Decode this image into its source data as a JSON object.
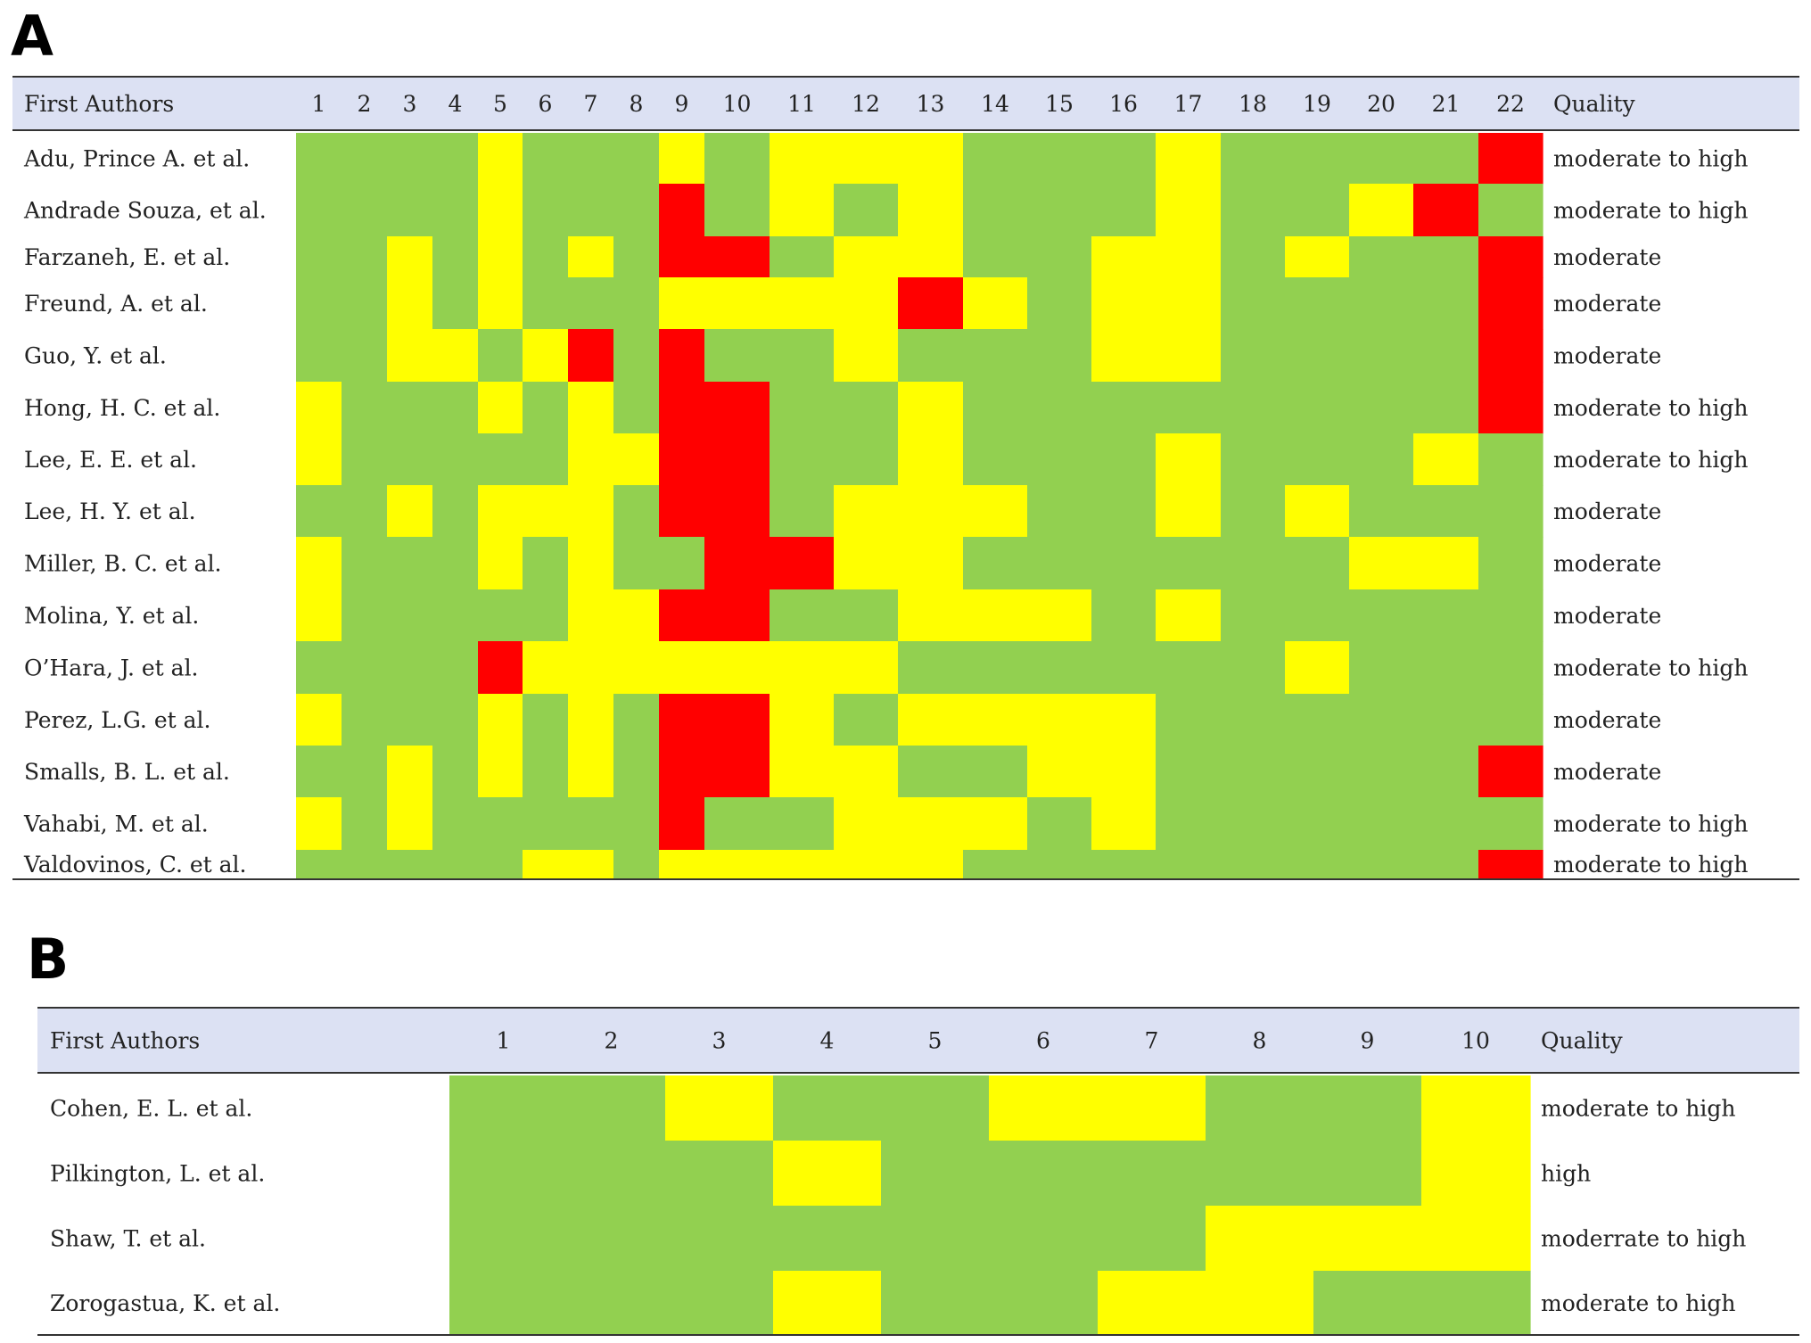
{
  "colors": {
    "green": "#92d050",
    "yellow": "#ffff00",
    "red": "#ff0000",
    "header_bg": "#dce1f3",
    "rule": "#333333"
  },
  "chart_data": [
    {
      "type": "heatmap",
      "panel": "A",
      "row_header": "First Authors",
      "quality_header": "Quality",
      "columns": [
        "1",
        "2",
        "3",
        "4",
        "5",
        "6",
        "7",
        "8",
        "9",
        "10",
        "11",
        "12",
        "13",
        "14",
        "15",
        "16",
        "17",
        "18",
        "19",
        "20",
        "21",
        "22"
      ],
      "legend": {
        "G": "green",
        "Y": "yellow",
        "R": "red"
      },
      "rows": [
        {
          "author": "Adu, Prince A. et al.",
          "quality": "moderate to high",
          "cells": [
            "G",
            "G",
            "G",
            "G",
            "Y",
            "G",
            "G",
            "G",
            "Y",
            "G",
            "Y",
            "Y",
            "Y",
            "G",
            "G",
            "G",
            "Y",
            "G",
            "G",
            "G",
            "G",
            "R"
          ]
        },
        {
          "author": "Andrade Souza, et al.",
          "quality": "moderate to high",
          "cells": [
            "G",
            "G",
            "G",
            "G",
            "Y",
            "G",
            "G",
            "G",
            "R",
            "G",
            "Y",
            "G",
            "Y",
            "G",
            "G",
            "G",
            "Y",
            "G",
            "G",
            "Y",
            "R",
            "G"
          ]
        },
        {
          "author": "Farzaneh, E. et al.",
          "quality": "moderate",
          "cells": [
            "G",
            "G",
            "Y",
            "G",
            "Y",
            "G",
            "Y",
            "G",
            "R",
            "R",
            "G",
            "Y",
            "Y",
            "G",
            "G",
            "Y",
            "Y",
            "G",
            "Y",
            "G",
            "G",
            "R"
          ]
        },
        {
          "author": "Freund, A. et al.",
          "quality": "moderate",
          "cells": [
            "G",
            "G",
            "Y",
            "G",
            "Y",
            "G",
            "G",
            "G",
            "Y",
            "Y",
            "Y",
            "Y",
            "R",
            "Y",
            "G",
            "Y",
            "Y",
            "G",
            "G",
            "G",
            "G",
            "R"
          ]
        },
        {
          "author": "Guo, Y. et al.",
          "quality": "moderate",
          "cells": [
            "G",
            "G",
            "Y",
            "Y",
            "G",
            "Y",
            "R",
            "G",
            "R",
            "G",
            "G",
            "Y",
            "G",
            "G",
            "G",
            "Y",
            "Y",
            "G",
            "G",
            "G",
            "G",
            "R"
          ]
        },
        {
          "author": "Hong, H. C. et al.",
          "quality": "moderate to high",
          "cells": [
            "Y",
            "G",
            "G",
            "G",
            "Y",
            "G",
            "Y",
            "G",
            "R",
            "R",
            "G",
            "G",
            "Y",
            "G",
            "G",
            "G",
            "G",
            "G",
            "G",
            "G",
            "G",
            "R"
          ]
        },
        {
          "author": "Lee, E. E. et al.",
          "quality": "moderate to high",
          "cells": [
            "Y",
            "G",
            "G",
            "G",
            "G",
            "G",
            "Y",
            "Y",
            "R",
            "R",
            "G",
            "G",
            "Y",
            "G",
            "G",
            "G",
            "Y",
            "G",
            "G",
            "G",
            "Y",
            "G"
          ]
        },
        {
          "author": "Lee, H. Y. et al.",
          "quality": "moderate",
          "cells": [
            "G",
            "G",
            "Y",
            "G",
            "Y",
            "Y",
            "Y",
            "G",
            "R",
            "R",
            "G",
            "Y",
            "Y",
            "Y",
            "G",
            "G",
            "Y",
            "G",
            "Y",
            "G",
            "G",
            "G"
          ]
        },
        {
          "author": "Miller, B. C. et al.",
          "quality": "moderate",
          "cells": [
            "Y",
            "G",
            "G",
            "G",
            "Y",
            "G",
            "Y",
            "G",
            "G",
            "R",
            "R",
            "Y",
            "Y",
            "G",
            "G",
            "G",
            "G",
            "G",
            "G",
            "Y",
            "Y",
            "G"
          ]
        },
        {
          "author": "Molina, Y. et al.",
          "quality": "moderate",
          "cells": [
            "Y",
            "G",
            "G",
            "G",
            "G",
            "G",
            "Y",
            "Y",
            "R",
            "R",
            "G",
            "G",
            "Y",
            "Y",
            "Y",
            "G",
            "Y",
            "G",
            "G",
            "G",
            "G",
            "G"
          ]
        },
        {
          "author": "O’Hara, J. et al.",
          "quality": "moderate to high",
          "cells": [
            "G",
            "G",
            "G",
            "G",
            "R",
            "Y",
            "Y",
            "Y",
            "Y",
            "Y",
            "Y",
            "Y",
            "G",
            "G",
            "G",
            "G",
            "G",
            "G",
            "Y",
            "G",
            "G",
            "G"
          ]
        },
        {
          "author": "Perez, L.G. et al.",
          "quality": "moderate",
          "cells": [
            "Y",
            "G",
            "G",
            "G",
            "Y",
            "G",
            "Y",
            "G",
            "R",
            "R",
            "Y",
            "G",
            "Y",
            "Y",
            "Y",
            "Y",
            "G",
            "G",
            "G",
            "G",
            "G",
            "G"
          ]
        },
        {
          "author": "Smalls, B. L. et al.",
          "quality": "moderate",
          "cells": [
            "G",
            "G",
            "Y",
            "G",
            "Y",
            "G",
            "Y",
            "G",
            "R",
            "R",
            "Y",
            "Y",
            "G",
            "G",
            "Y",
            "Y",
            "G",
            "G",
            "G",
            "G",
            "G",
            "R"
          ]
        },
        {
          "author": "Vahabi, M. et al.",
          "quality": "moderate to high",
          "cells": [
            "Y",
            "G",
            "Y",
            "G",
            "G",
            "G",
            "G",
            "G",
            "R",
            "G",
            "G",
            "Y",
            "Y",
            "Y",
            "G",
            "Y",
            "G",
            "G",
            "G",
            "G",
            "G",
            "G"
          ]
        },
        {
          "author": "Valdovinos, C. et al.",
          "quality": "moderate to high",
          "cells": [
            "G",
            "G",
            "G",
            "G",
            "G",
            "Y",
            "Y",
            "G",
            "Y",
            "Y",
            "Y",
            "Y",
            "Y",
            "G",
            "G",
            "G",
            "G",
            "G",
            "G",
            "G",
            "G",
            "R"
          ]
        }
      ]
    },
    {
      "type": "heatmap",
      "panel": "B",
      "row_header": "First Authors",
      "quality_header": "Quality",
      "columns": [
        "1",
        "2",
        "3",
        "4",
        "5",
        "6",
        "7",
        "8",
        "9",
        "10"
      ],
      "legend": {
        "G": "green",
        "Y": "yellow",
        "R": "red"
      },
      "rows": [
        {
          "author": "Cohen, E. L. et al.",
          "quality": "moderate to high",
          "cells": [
            "G",
            "G",
            "Y",
            "G",
            "G",
            "Y",
            "Y",
            "G",
            "G",
            "Y"
          ]
        },
        {
          "author": "Pilkington, L. et al.",
          "quality": "high",
          "cells": [
            "G",
            "G",
            "G",
            "Y",
            "G",
            "G",
            "G",
            "G",
            "G",
            "Y"
          ]
        },
        {
          "author": "Shaw, T. et al.",
          "quality": "moderrate to high",
          "cells": [
            "G",
            "G",
            "G",
            "G",
            "G",
            "G",
            "G",
            "Y",
            "Y",
            "Y"
          ]
        },
        {
          "author": "Zorogastua, K. et al.",
          "quality": "moderate to high",
          "cells": [
            "G",
            "G",
            "G",
            "Y",
            "G",
            "G",
            "Y",
            "Y",
            "G",
            "G"
          ]
        }
      ]
    }
  ]
}
